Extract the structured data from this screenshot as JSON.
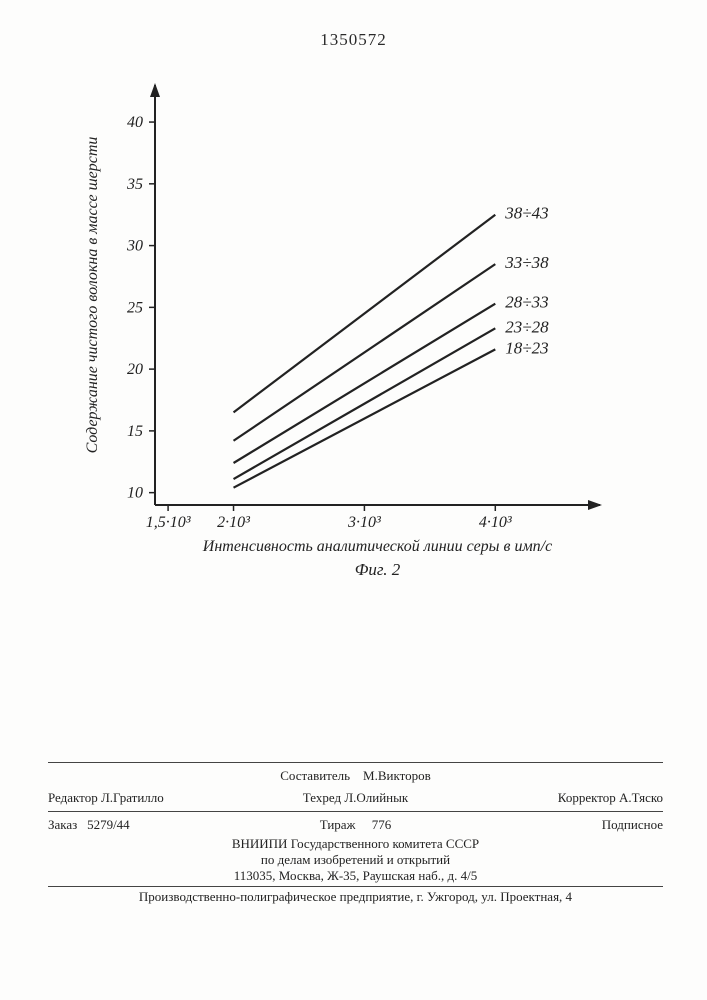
{
  "doc_number": "1350572",
  "chart": {
    "type": "line",
    "x_label": "Интенсивность аналитической линии серы в имп/с",
    "y_label": "Содержание чистого волокна в массе шерсти",
    "caption": "Фиг. 2",
    "x_ticks": [
      {
        "v": 1500,
        "label": "1,5·10³"
      },
      {
        "v": 2000,
        "label": "2·10³"
      },
      {
        "v": 3000,
        "label": "3·10³"
      },
      {
        "v": 4000,
        "label": "4·10³"
      }
    ],
    "y_ticks": [
      10,
      15,
      20,
      25,
      30,
      35,
      40
    ],
    "xlim": [
      1400,
      4800
    ],
    "ylim": [
      9,
      43
    ],
    "series": [
      {
        "label": "38÷43",
        "x1": 2000,
        "y1": 16.5,
        "x2": 4000,
        "y2": 32.5,
        "color": "#222"
      },
      {
        "label": "33÷38",
        "x1": 2000,
        "y1": 14.2,
        "x2": 4000,
        "y2": 28.5,
        "color": "#222"
      },
      {
        "label": "28÷33",
        "x1": 2000,
        "y1": 12.4,
        "x2": 4000,
        "y2": 25.3,
        "color": "#222"
      },
      {
        "label": "23÷28",
        "x1": 2000,
        "y1": 11.1,
        "x2": 4000,
        "y2": 23.3,
        "color": "#222"
      },
      {
        "label": "18÷23",
        "x1": 2000,
        "y1": 10.4,
        "x2": 4000,
        "y2": 21.6,
        "color": "#222"
      }
    ],
    "axis_color": "#222",
    "line_width": 2.2,
    "font_size_axis": 16,
    "font_size_series": 17,
    "font_style": "italic"
  },
  "footer": {
    "row1": {
      "compiler_role": "Составитель",
      "compiler_name": "М.Викторов"
    },
    "row2": {
      "editor_role": "Редактор",
      "editor_name": "Л.Гратилло",
      "tech_role": "Техред",
      "tech_name": "Л.Олийнык",
      "corr_role": "Корректор",
      "corr_name": "А.Тяско"
    },
    "row3": {
      "order_label": "Заказ",
      "order_val": "5279/44",
      "tirazh_label": "Тираж",
      "tirazh_val": "776",
      "subscr": "Подписное"
    },
    "org1": "ВНИИПИ Государственного комитета СССР",
    "org2": "по делам изобретений и открытий",
    "addr": "113035, Москва, Ж-35, Раушская наб., д. 4/5",
    "printer": "Производственно-полиграфическое предприятие, г. Ужгород, ул. Проектная, 4"
  }
}
